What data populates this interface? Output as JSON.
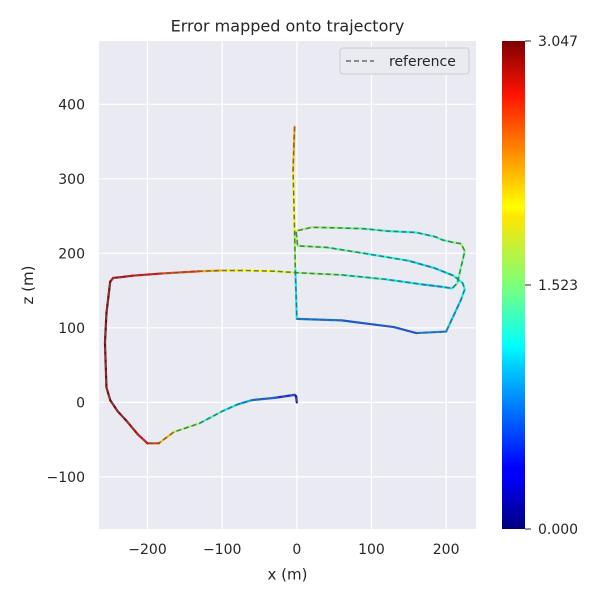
{
  "chart_data": {
    "type": "line",
    "title": "Error mapped onto trajectory",
    "xlabel": "x (m)",
    "ylabel": "z (m)",
    "xlim": [
      -265,
      240
    ],
    "ylim": [
      -170,
      485
    ],
    "xticks": [
      -200,
      -100,
      0,
      100,
      200
    ],
    "yticks": [
      -100,
      0,
      100,
      200,
      300,
      400
    ],
    "xtick_labels": [
      "−200",
      "−100",
      "0",
      "100",
      "200"
    ],
    "ytick_labels": [
      "−100",
      "0",
      "100",
      "200",
      "300",
      "400"
    ],
    "grid": true,
    "legend": {
      "placement": "top-right",
      "entries": [
        {
          "label": "reference",
          "style": "dashed",
          "color": "#6b6b6b"
        }
      ]
    },
    "colorbar": {
      "min": 0.0,
      "max": 3.047,
      "tick_labels": [
        "3.047",
        "1.523",
        "0.000"
      ],
      "colormap": "jet"
    },
    "series": [
      {
        "name": "reference",
        "x": [
          0,
          -1,
          -3,
          -30,
          -60,
          -80,
          -100,
          -130,
          -165,
          -185,
          -200,
          -213,
          -228,
          -240,
          -250,
          -255,
          -257,
          -255,
          -252,
          -250,
          -246,
          -236,
          -220,
          -180,
          -130,
          -100,
          -70,
          -30,
          0,
          60,
          120,
          170,
          195,
          208,
          215,
          225,
          220,
          208,
          195,
          186,
          160,
          120,
          90,
          60,
          20,
          -1,
          1,
          40,
          90,
          150,
          185,
          210,
          222,
          225,
          220,
          200,
          160,
          130,
          60,
          0,
          -2,
          -3,
          -5,
          -4,
          -3
        ],
        "y": [
          0,
          8,
          10,
          6,
          3,
          -3,
          -12,
          -28,
          -40,
          -55,
          -55,
          -43,
          -25,
          -12,
          3,
          20,
          80,
          120,
          145,
          162,
          167,
          168,
          170,
          173,
          176,
          177,
          177,
          176,
          174,
          171,
          165,
          158,
          155,
          153,
          160,
          203,
          213,
          215,
          218,
          222,
          228,
          230,
          233,
          234,
          235,
          230,
          210,
          208,
          200,
          190,
          180,
          170,
          160,
          152,
          138,
          95,
          93,
          101,
          110,
          112,
          180,
          230,
          310,
          340,
          370
        ],
        "error": [
          0.0,
          0.2,
          0.4,
          0.6,
          0.8,
          1.0,
          1.2,
          1.4,
          1.8,
          2.4,
          2.6,
          2.8,
          2.9,
          3.0,
          3.0,
          3.0,
          3.04,
          3.04,
          3.0,
          2.95,
          2.9,
          2.9,
          2.8,
          2.6,
          2.3,
          2.0,
          1.9,
          1.9,
          1.7,
          1.4,
          1.2,
          1.0,
          1.0,
          1.1,
          1.3,
          1.6,
          1.6,
          1.4,
          1.4,
          1.3,
          1.2,
          1.2,
          1.4,
          1.5,
          1.6,
          1.6,
          1.6,
          1.5,
          1.3,
          1.1,
          1.0,
          1.1,
          1.2,
          1.2,
          1.1,
          0.9,
          0.7,
          0.6,
          0.7,
          0.8,
          1.4,
          1.8,
          2.0,
          2.1,
          2.2
        ]
      }
    ]
  }
}
